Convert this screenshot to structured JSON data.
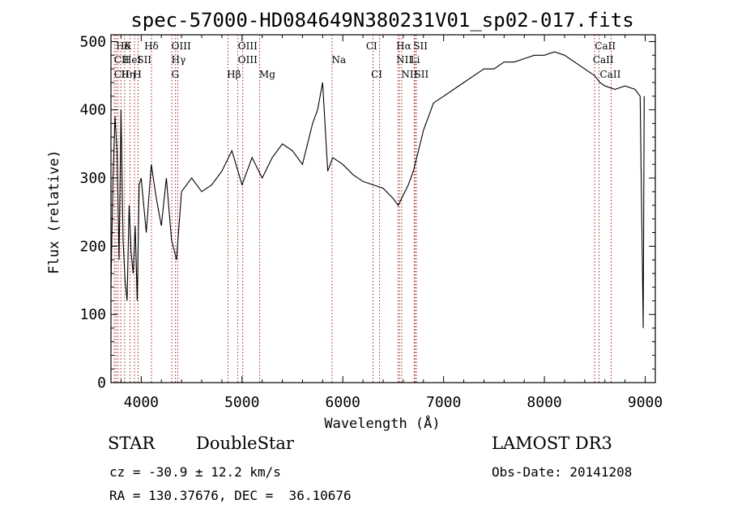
{
  "chart_data": {
    "type": "line",
    "title": "spec-57000-HD084649N380231V01_sp02-017.fits",
    "xlabel": "Wavelength (Å)",
    "ylabel": "Flux (relative)",
    "xlim": [
      3700,
      9100
    ],
    "ylim": [
      0,
      510
    ],
    "x_ticks": [
      4000,
      5000,
      6000,
      7000,
      8000,
      9000
    ],
    "y_ticks": [
      0,
      100,
      200,
      300,
      400,
      500
    ],
    "spectrum": {
      "x": [
        3700,
        3720,
        3740,
        3760,
        3780,
        3800,
        3820,
        3840,
        3860,
        3880,
        3900,
        3920,
        3940,
        3960,
        3980,
        4000,
        4050,
        4100,
        4150,
        4200,
        4250,
        4300,
        4350,
        4400,
        4500,
        4600,
        4700,
        4800,
        4900,
        5000,
        5100,
        5200,
        5300,
        5400,
        5500,
        5600,
        5700,
        5750,
        5800,
        5850,
        5900,
        6000,
        6100,
        6200,
        6300,
        6400,
        6500,
        6550,
        6600,
        6650,
        6700,
        6750,
        6800,
        6850,
        6900,
        7000,
        7100,
        7200,
        7300,
        7400,
        7500,
        7600,
        7700,
        7800,
        7900,
        8000,
        8100,
        8200,
        8300,
        8400,
        8450,
        8500,
        8550,
        8600,
        8700,
        8800,
        8900,
        8950,
        8980,
        8990
      ],
      "y": [
        140,
        300,
        390,
        340,
        180,
        400,
        210,
        150,
        120,
        260,
        190,
        160,
        230,
        120,
        290,
        300,
        220,
        320,
        270,
        230,
        300,
        210,
        180,
        280,
        300,
        280,
        290,
        310,
        340,
        290,
        330,
        300,
        330,
        350,
        340,
        320,
        380,
        400,
        440,
        310,
        330,
        320,
        305,
        295,
        290,
        285,
        270,
        260,
        275,
        290,
        310,
        340,
        370,
        390,
        410,
        420,
        430,
        440,
        450,
        460,
        460,
        470,
        470,
        475,
        480,
        480,
        485,
        480,
        470,
        460,
        455,
        450,
        440,
        435,
        430,
        435,
        430,
        420,
        80,
        420
      ]
    },
    "spectral_lines": [
      {
        "name": "Hδ",
        "wavelength": 3750,
        "row": 1
      },
      {
        "name": "K",
        "wavelength": 3830,
        "row": 1
      },
      {
        "name": "Hδ",
        "wavelength": 4030,
        "row": 1
      },
      {
        "name": "OIII",
        "wavelength": 4300,
        "row": 1
      },
      {
        "name": "OIII",
        "wavelength": 4960,
        "row": 1
      },
      {
        "name": "CI",
        "wavelength": 6230,
        "row": 1
      },
      {
        "name": "Hα",
        "wavelength": 6530,
        "row": 1
      },
      {
        "name": "SII",
        "wavelength": 6700,
        "row": 1
      },
      {
        "name": "CaII",
        "wavelength": 8500,
        "row": 1
      },
      {
        "name": "CII",
        "wavelength": 3730,
        "row": 2
      },
      {
        "name": "HeI",
        "wavelength": 3820,
        "row": 2
      },
      {
        "name": "SII",
        "wavelength": 3960,
        "row": 2
      },
      {
        "name": "Hγ",
        "wavelength": 4300,
        "row": 2
      },
      {
        "name": "OIII",
        "wavelength": 4960,
        "row": 2
      },
      {
        "name": "Na",
        "wavelength": 5890,
        "row": 2
      },
      {
        "name": "NII",
        "wavelength": 6530,
        "row": 2
      },
      {
        "name": "Li",
        "wavelength": 6670,
        "row": 2
      },
      {
        "name": "CaII",
        "wavelength": 8480,
        "row": 2
      },
      {
        "name": "CII",
        "wavelength": 3730,
        "row": 3
      },
      {
        "name": "Hη",
        "wavelength": 3800,
        "row": 3
      },
      {
        "name": "H",
        "wavelength": 3920,
        "row": 3
      },
      {
        "name": "G",
        "wavelength": 4300,
        "row": 3
      },
      {
        "name": "Hβ",
        "wavelength": 4850,
        "row": 3
      },
      {
        "name": "Mg",
        "wavelength": 5170,
        "row": 3
      },
      {
        "name": "CI",
        "wavelength": 6280,
        "row": 3
      },
      {
        "name": "NII",
        "wavelength": 6580,
        "row": 3
      },
      {
        "name": "SII",
        "wavelength": 6710,
        "row": 3
      },
      {
        "name": "CaII",
        "wavelength": 8550,
        "row": 3
      }
    ],
    "line_marker_wavelengths": [
      3734,
      3750,
      3770,
      3798,
      3835,
      3889,
      3934,
      3969,
      4102,
      4304,
      4340,
      4363,
      4861,
      4959,
      5007,
      5175,
      5893,
      6300,
      6364,
      6548,
      6563,
      6584,
      6708,
      6717,
      6731,
      8498,
      8542,
      8662
    ],
    "line_color": "#a0201c"
  },
  "info": {
    "class_label": "STAR",
    "subclass_label": "DoubleStar",
    "cz_text": "cz = -30.9 ± 12.2 km/s",
    "radec_text": "RA = 130.37676, DEC =  36.10676",
    "survey_text": "LAMOST DR3",
    "obsdate_text": "Obs-Date: 20141208"
  }
}
